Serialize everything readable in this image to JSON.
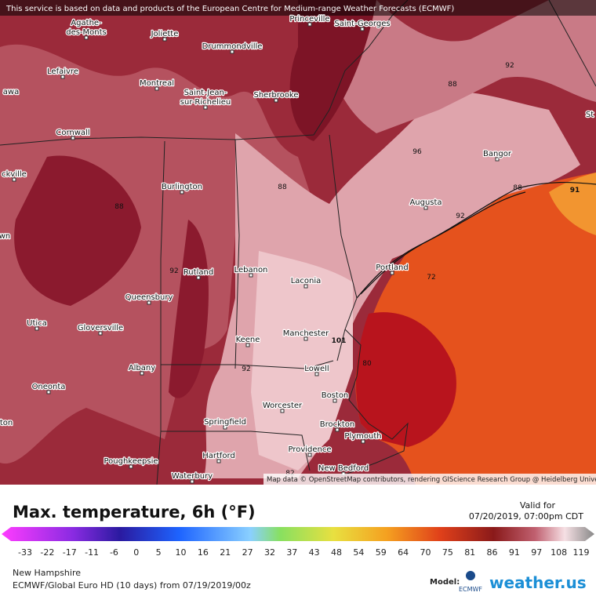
{
  "header": {
    "notice": "This service is based on data and products of the European Centre for Medium-range Weather Forecasts (ECMWF)"
  },
  "map": {
    "cities": [
      "Princeville",
      "Saint-Georges",
      "Agathe-",
      "des-Monts",
      "Joliette",
      "Drummondville",
      "Lefaivre",
      "awa",
      "Montreal",
      "Saint-Jean-",
      "sur-Richelieu",
      "Sherbrooke",
      "St",
      "Cornwall",
      "Bangor",
      "ckville",
      "Burlington",
      "Augusta",
      "wn",
      "Lebanon",
      "Rutland",
      "Portland",
      "Laconia",
      "Queensbury",
      "Utica",
      "Gloversville",
      "Manchester",
      "Keene",
      "Albany",
      "Lowell",
      "Oneonta",
      "Boston",
      "Worcester",
      "Springfield",
      "ton",
      "Brockton",
      "Plymouth",
      "Hartford",
      "Providence",
      "Poughkeepsie",
      "New Bedford",
      "Waterbury"
    ],
    "contour_labels": [
      "92",
      "88",
      "96",
      "88",
      "92",
      "92",
      "72",
      "101",
      "92",
      "80",
      "88",
      "91",
      "88",
      "82"
    ],
    "attribution": "Map data © OpenStreetMap contributors, rendering GIScience Research Group @ Heidelberg University"
  },
  "legend": {
    "title": "Max. temperature, 6h (°F)",
    "valid_label": "Valid for",
    "valid_time": "07/20/2019, 07:00pm CDT",
    "ticks": [
      "-33",
      "-22",
      "-17",
      "-11",
      "-6",
      "0",
      "5",
      "10",
      "16",
      "21",
      "27",
      "32",
      "37",
      "43",
      "48",
      "54",
      "59",
      "64",
      "70",
      "75",
      "81",
      "86",
      "91",
      "97",
      "108",
      "119"
    ],
    "region": "New Hampshire",
    "model_run": "ECMWF/Global Euro HD (10 days) from 07/19/2019/00z",
    "model_label": "Model:",
    "model_name": "ECMWF",
    "brand": "weather.us"
  }
}
